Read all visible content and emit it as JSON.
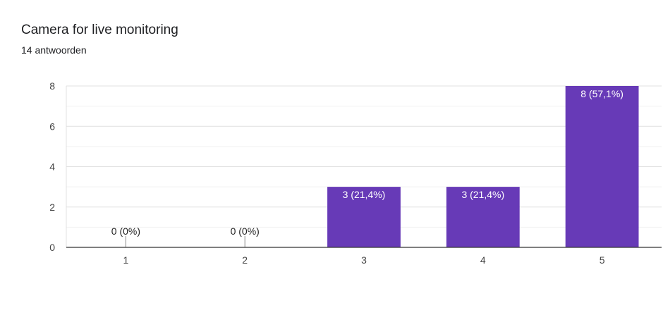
{
  "question": {
    "title": "Camera for live monitoring",
    "response_count": "14 antwoorden"
  },
  "chart_data": {
    "type": "bar",
    "categories": [
      "1",
      "2",
      "3",
      "4",
      "5"
    ],
    "values": [
      0,
      0,
      3,
      3,
      8
    ],
    "data_labels": [
      "0 (0%)",
      "0 (0%)",
      "3 (21,4%)",
      "3 (21,4%)",
      "8 (57,1%)"
    ],
    "title": "",
    "xlabel": "",
    "ylabel": "",
    "ylim": [
      0,
      8
    ],
    "yticks": [
      0,
      2,
      4,
      6,
      8
    ],
    "grid": true,
    "legend": "none",
    "colors": {
      "bar": "#673ab7",
      "bar_label_inside": "#ffffff",
      "bar_label_outside": "#222222",
      "grid_major": "#e0e0e0",
      "grid_minor": "#f1f1f1",
      "axis": "#333333"
    }
  }
}
